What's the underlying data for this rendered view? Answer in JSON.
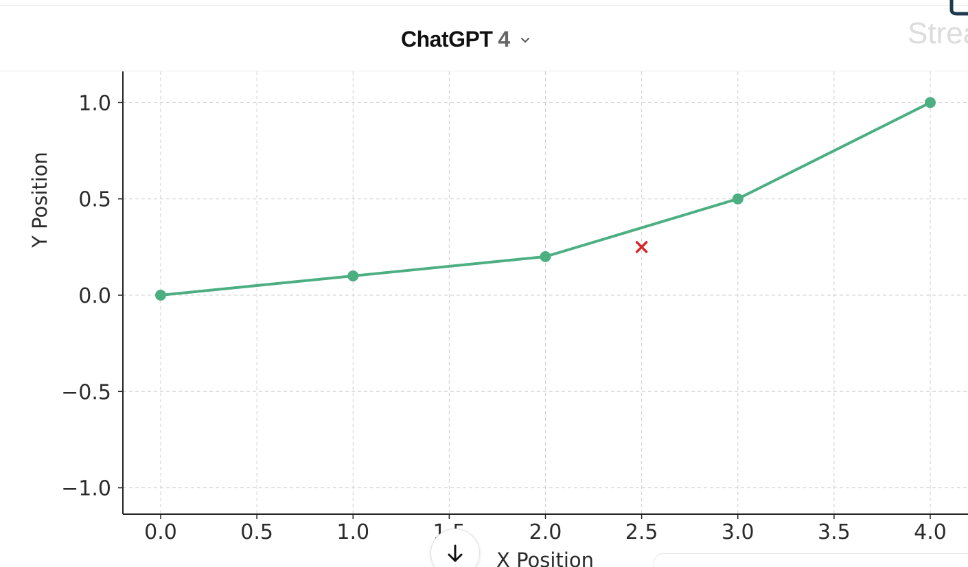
{
  "header": {
    "model_name": "ChatGPT",
    "model_version": "4"
  },
  "watermark": {
    "text": "Strea"
  },
  "icons": {
    "model_dropdown": "chevron-down-icon",
    "scroll_down": "arrow-down-icon",
    "watermark_logo": "logo-icon"
  },
  "chart_data": {
    "type": "line",
    "title": "",
    "xlabel": "X Position",
    "ylabel": "Y Position",
    "xlim": [
      -0.2,
      4.2
    ],
    "ylim": [
      -1.15,
      1.16
    ],
    "grid": true,
    "x_ticks": [
      0.0,
      0.5,
      1.0,
      1.5,
      2.0,
      2.5,
      3.0,
      3.5,
      4.0
    ],
    "x_tick_labels": [
      "0.0",
      "0.5",
      "1.0",
      "1.5",
      "2.0",
      "2.5",
      "3.0",
      "3.5",
      "4.0"
    ],
    "y_ticks": [
      -1.0,
      -0.5,
      0.0,
      0.5,
      1.0
    ],
    "y_tick_labels": [
      "−1.0",
      "−0.5",
      "0.0",
      "0.5",
      "1.0"
    ],
    "series": [
      {
        "x": [
          0,
          1,
          2,
          3,
          4
        ],
        "y": [
          0.0,
          0.1,
          0.2,
          0.5,
          1.0
        ],
        "color": "#4caf82",
        "marker": "circle"
      },
      {
        "x": [
          2.5
        ],
        "y": [
          0.25
        ],
        "color": "#d62728",
        "marker": "x"
      }
    ]
  }
}
